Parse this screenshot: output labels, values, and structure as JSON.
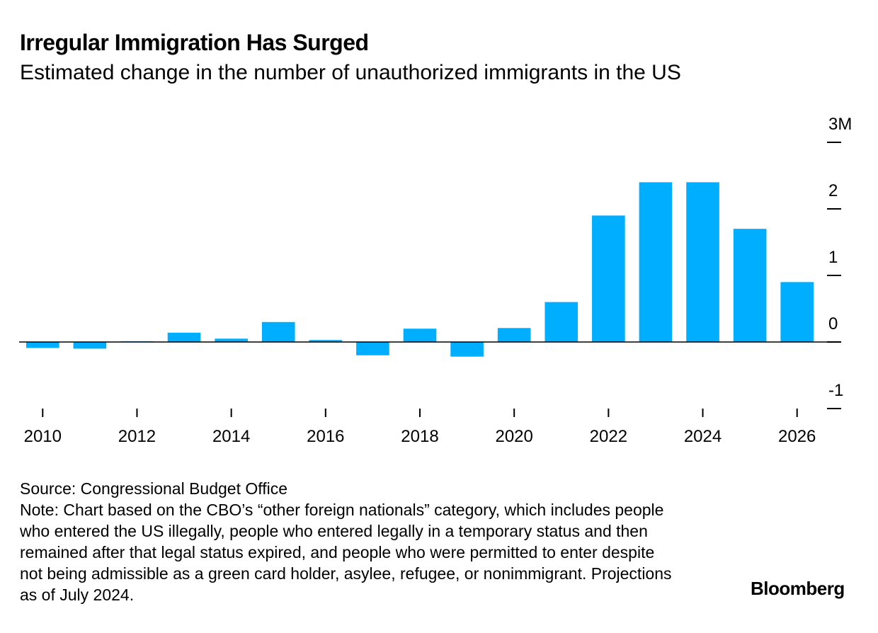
{
  "chart_data": {
    "type": "bar",
    "title": "Irregular Immigration Has Surged",
    "subtitle": "Estimated change in the number of unauthorized immigrants in the US",
    "x": [
      2010,
      2011,
      2012,
      2013,
      2014,
      2015,
      2016,
      2017,
      2018,
      2019,
      2020,
      2021,
      2022,
      2023,
      2024,
      2025,
      2026
    ],
    "values": [
      -0.09,
      -0.1,
      0.01,
      0.14,
      0.05,
      0.3,
      0.03,
      -0.2,
      0.2,
      -0.22,
      0.21,
      0.6,
      1.9,
      2.4,
      2.4,
      1.7,
      0.9
    ],
    "color": "#00aeff",
    "xlim": [
      2009.5,
      2026.5
    ],
    "xticks": [
      2010,
      2012,
      2014,
      2016,
      2018,
      2020,
      2022,
      2024,
      2026
    ],
    "ylim": [
      -1,
      3
    ],
    "yticks": [
      -1,
      0,
      1,
      2,
      {
        "value": 3,
        "label": "3M"
      }
    ],
    "zero_line": true,
    "source": "Source: Congressional Budget Office",
    "note": "Note: Chart based on the CBO’s “other foreign nationals” category, which includes people who entered the US illegally, people who entered legally in a temporary status and then remained after that legal status expired, and people who were permitted to enter despite not being admissible as a green card holder, asylee, refugee, or nonimmigrant. Projections as of July 2024.",
    "brand": "Bloomberg"
  }
}
